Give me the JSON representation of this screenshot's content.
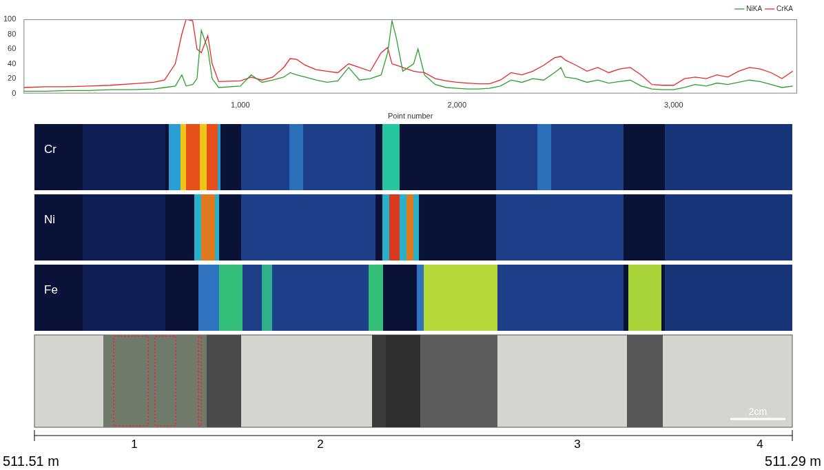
{
  "chart_data": {
    "type": "line",
    "x_label": "Point number",
    "x": [
      0,
      100,
      200,
      300,
      400,
      500,
      600,
      650,
      700,
      730,
      750,
      780,
      800,
      820,
      850,
      870,
      900,
      1000,
      1050,
      1100,
      1150,
      1200,
      1230,
      1260,
      1300,
      1350,
      1400,
      1450,
      1500,
      1550,
      1600,
      1650,
      1680,
      1700,
      1720,
      1750,
      1800,
      1820,
      1850,
      1900,
      1950,
      2000,
      2050,
      2100,
      2150,
      2200,
      2250,
      2300,
      2350,
      2400,
      2450,
      2480,
      2500,
      2550,
      2600,
      2650,
      2700,
      2750,
      2800,
      2850,
      2900,
      2950,
      3000,
      3050,
      3100,
      3150,
      3200,
      3250,
      3300,
      3350,
      3400,
      3450,
      3500,
      3550
    ],
    "series": [
      {
        "name": "NiKA",
        "color": "#2ca02c",
        "values": [
          3,
          3,
          4,
          4,
          5,
          5,
          6,
          8,
          10,
          25,
          10,
          12,
          20,
          85,
          60,
          20,
          8,
          10,
          25,
          15,
          18,
          22,
          28,
          25,
          22,
          18,
          15,
          17,
          35,
          18,
          20,
          25,
          55,
          98,
          75,
          30,
          40,
          60,
          25,
          12,
          8,
          7,
          6,
          6,
          7,
          10,
          18,
          15,
          20,
          18,
          28,
          35,
          22,
          20,
          15,
          18,
          14,
          16,
          18,
          10,
          6,
          5,
          5,
          8,
          12,
          10,
          14,
          12,
          15,
          18,
          16,
          12,
          8,
          10
        ]
      },
      {
        "name": "CrKA",
        "color": "#e8272a",
        "values": [
          8,
          9,
          9,
          10,
          11,
          13,
          15,
          18,
          40,
          80,
          100,
          98,
          60,
          55,
          78,
          40,
          16,
          17,
          22,
          18,
          22,
          35,
          47,
          46,
          38,
          32,
          30,
          28,
          40,
          35,
          30,
          55,
          62,
          40,
          38,
          35,
          30,
          29,
          28,
          20,
          17,
          15,
          14,
          13,
          13,
          18,
          28,
          25,
          30,
          38,
          48,
          50,
          45,
          38,
          30,
          35,
          28,
          33,
          35,
          25,
          12,
          11,
          11,
          20,
          22,
          20,
          25,
          22,
          30,
          35,
          33,
          28,
          20,
          30
        ]
      }
    ],
    "xlim": [
      0,
      3570
    ],
    "xticks": [
      1000,
      2000,
      3000
    ],
    "ylim": [
      0,
      100
    ],
    "yticks": [
      0,
      20,
      40,
      60,
      80,
      100
    ],
    "grid": false,
    "legend": "upper right"
  },
  "maps": {
    "panels": [
      "Cr",
      "Ni",
      "Fe"
    ]
  },
  "core_scale": {
    "top_depth": "511.51 m",
    "bottom_depth": "511.29 m",
    "sections": [
      "1",
      "2",
      "3",
      "4"
    ],
    "scale_bar": "2cm"
  }
}
